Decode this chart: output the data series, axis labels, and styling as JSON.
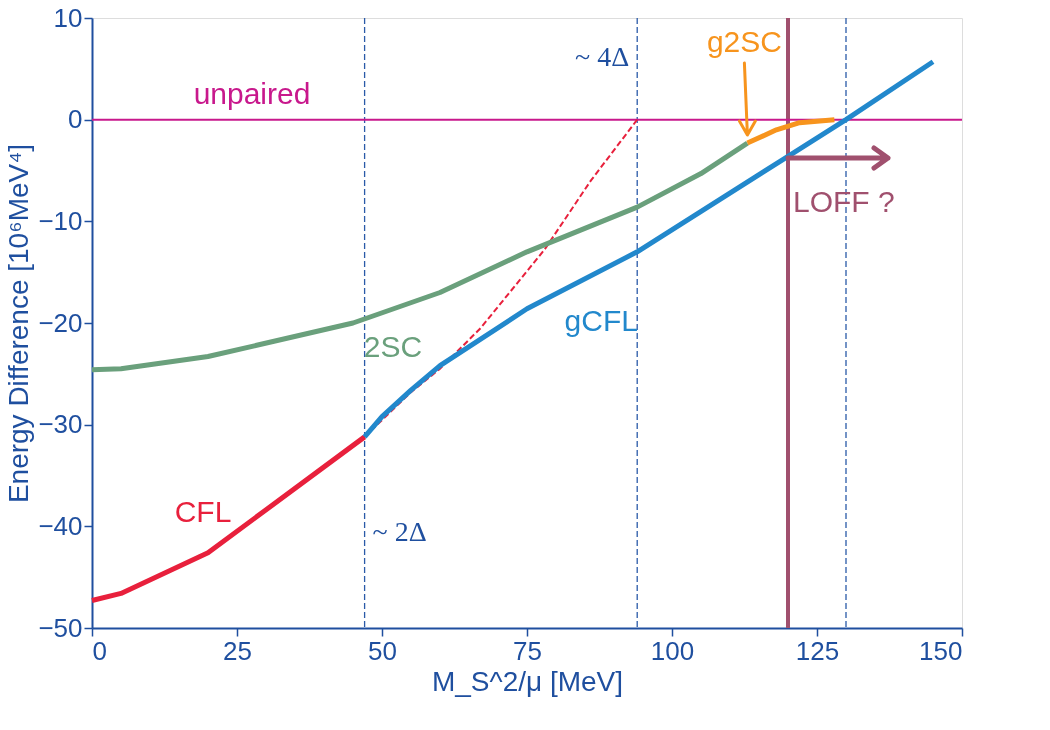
{
  "chart_data": {
    "type": "line",
    "xlabel": "M_S^2/μ [MeV]",
    "ylabel": "Energy Difference [10⁶MeV⁴]",
    "xlim": [
      0,
      150
    ],
    "ylim": [
      -50,
      10
    ],
    "xticks": [
      0,
      25,
      50,
      75,
      100,
      125,
      150
    ],
    "yticks": [
      -50,
      -40,
      -30,
      -20,
      -10,
      0,
      10
    ],
    "grid": false,
    "marker": "none",
    "series": [
      {
        "name": "unpaired",
        "color": "#c8188c",
        "x": [
          0,
          150
        ],
        "values": [
          0,
          0
        ]
      },
      {
        "name": "CFL",
        "color": "#e8203c",
        "x": [
          0,
          5,
          20,
          47
        ],
        "values": [
          -47.3,
          -46.6,
          -42.6,
          -31.2
        ]
      },
      {
        "color": "#e8203c",
        "line_style": "dashed",
        "x": [
          47,
          55,
          60,
          67,
          78,
          86,
          94
        ],
        "values": [
          -31.2,
          -26.8,
          -24.5,
          -20.5,
          -12.8,
          -6,
          0
        ]
      },
      {
        "name": "gCFL",
        "color": "#2288cc",
        "x": [
          47,
          50,
          55,
          60,
          75,
          94,
          120,
          130,
          145
        ],
        "values": [
          -31.2,
          -29.2,
          -26.6,
          -24.2,
          -18.6,
          -13,
          -3.6,
          0,
          5.7
        ]
      },
      {
        "name": "2SC",
        "color": "#6aa07c",
        "x": [
          0,
          5,
          20,
          45,
          60,
          75,
          94,
          105,
          113
        ],
        "values": [
          -24.6,
          -24.5,
          -23.3,
          -20,
          -17,
          -13,
          -8.6,
          -5.3,
          -2.3
        ]
      },
      {
        "name": "g2SC",
        "color": "#f7941d",
        "x": [
          113,
          118,
          122,
          128
        ],
        "values": [
          -2.3,
          -1,
          -0.3,
          0
        ]
      }
    ],
    "ref_lines": [
      {
        "axis": "x",
        "value": 47,
        "label": "~ 2Δ",
        "color": "#2a5aa8",
        "line_style": "dashed"
      },
      {
        "axis": "x",
        "value": 94,
        "label": "~ 4Δ",
        "color": "#2a5aa8",
        "line_style": "dashed"
      },
      {
        "axis": "x",
        "value": 130,
        "color": "#2a5aa8",
        "line_style": "dashed"
      },
      {
        "axis": "x",
        "value": 120,
        "color": "#a0506e",
        "line_style": "solid"
      }
    ],
    "annotations": [
      "LOFF ?"
    ]
  }
}
